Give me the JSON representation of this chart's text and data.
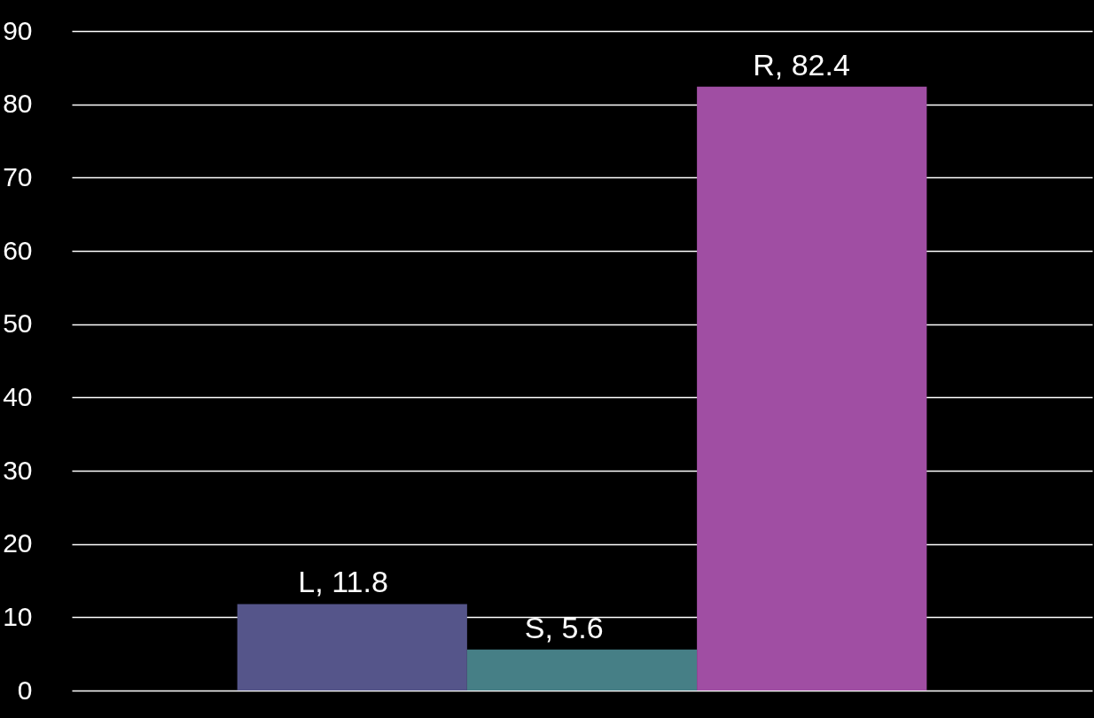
{
  "chart_data": {
    "type": "bar",
    "categories": [
      null
    ],
    "series": [
      {
        "name": "L",
        "color": "#55558a",
        "values": [
          11.8
        ],
        "value_labels": [
          ", 11.8"
        ]
      },
      {
        "name": "S",
        "color": "#467f86",
        "values": [
          5.6
        ],
        "value_labels": [
          ", 5.6"
        ]
      },
      {
        "name": "R",
        "color": "#a04ea3",
        "values": [
          82.4
        ],
        "value_labels": [
          ", 82.4"
        ]
      }
    ],
    "ylim": [
      0,
      90
    ],
    "yticks": [
      0,
      10,
      20,
      30,
      40,
      50,
      60,
      70,
      80,
      90
    ],
    "grid": "y",
    "legend": false,
    "tick_labels": "y"
  }
}
